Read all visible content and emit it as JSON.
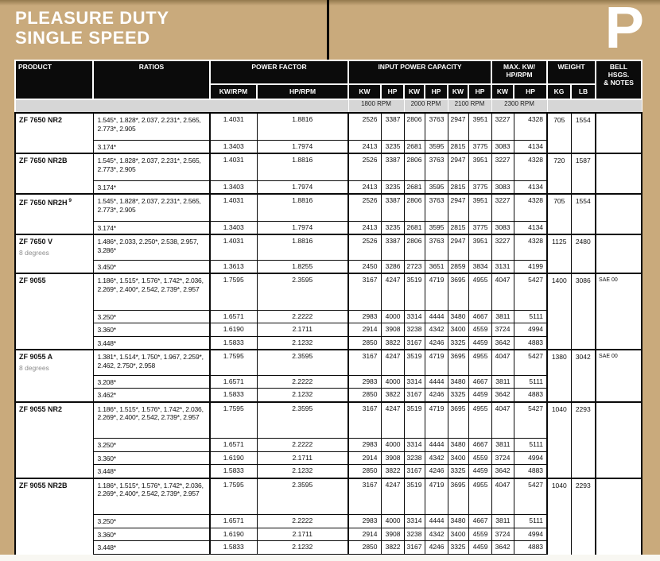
{
  "page": {
    "title": "PLEASURE DUTY\nSINGLE SPEED",
    "section_letter": "P"
  },
  "colors": {
    "accent_tan": "#c9aa7c",
    "header_black": "#0b0b0b",
    "rpm_band_gray": "#d6d6d6",
    "note_gray": "#8d8d8d"
  },
  "table": {
    "header": {
      "product": "PRODUCT",
      "ratios": "RATIOS",
      "power_factor": "POWER FACTOR",
      "kw_rpm": "KW/RPM",
      "hp_rpm": "HP/RPM",
      "input_power_capacity": "INPUT POWER CAPACITY",
      "max_kw_hp_rpm": "MAX. KW/\nHP/RPM",
      "weight": "WEIGHT",
      "bell_hsgs_notes": "BELL HSGS.\n& NOTES",
      "kw": "KW",
      "hp": "HP",
      "kg": "KG",
      "lb": "LB",
      "rpm_labels": [
        "1800 RPM",
        "2000 RPM",
        "2100 RPM",
        "2300 RPM"
      ]
    },
    "groups": [
      {
        "product": "ZF 7650 NR2",
        "sup": "",
        "note": "",
        "weight_kg": "705",
        "weight_lb": "1554",
        "bell": "",
        "rows": [
          {
            "ratios": "1.545*, 1.828*, 2.037, 2.231*, 2.565, 2.773*, 2.905",
            "kw_rpm": "1.4031",
            "hp_rpm": "1.8816",
            "values": [
              "2526",
              "3387",
              "2806",
              "3763",
              "2947",
              "3951",
              "3227",
              "4328"
            ]
          },
          {
            "ratios": "3.174*",
            "kw_rpm": "1.3403",
            "hp_rpm": "1.7974",
            "values": [
              "2413",
              "3235",
              "2681",
              "3595",
              "2815",
              "3775",
              "3083",
              "4134"
            ]
          }
        ]
      },
      {
        "product": "ZF 7650 NR2B",
        "sup": "",
        "note": "",
        "weight_kg": "720",
        "weight_lb": "1587",
        "bell": "",
        "rows": [
          {
            "ratios": "1.545*, 1.828*, 2.037, 2.231*, 2.565, 2.773*, 2.905",
            "kw_rpm": "1.4031",
            "hp_rpm": "1.8816",
            "values": [
              "2526",
              "3387",
              "2806",
              "3763",
              "2947",
              "3951",
              "3227",
              "4328"
            ]
          },
          {
            "ratios": "3.174*",
            "kw_rpm": "1.3403",
            "hp_rpm": "1.7974",
            "values": [
              "2413",
              "3235",
              "2681",
              "3595",
              "2815",
              "3775",
              "3083",
              "4134"
            ]
          }
        ]
      },
      {
        "product": "ZF 7650 NR2H",
        "sup": "9",
        "note": "",
        "weight_kg": "705",
        "weight_lb": "1554",
        "bell": "",
        "rows": [
          {
            "ratios": "1.545*, 1.828*, 2.037, 2.231*, 2.565, 2.773*, 2.905",
            "kw_rpm": "1.4031",
            "hp_rpm": "1.8816",
            "values": [
              "2526",
              "3387",
              "2806",
              "3763",
              "2947",
              "3951",
              "3227",
              "4328"
            ]
          },
          {
            "ratios": "3.174*",
            "kw_rpm": "1.3403",
            "hp_rpm": "1.7974",
            "values": [
              "2413",
              "3235",
              "2681",
              "3595",
              "2815",
              "3775",
              "3083",
              "4134"
            ]
          }
        ]
      },
      {
        "product": "ZF 7650 V",
        "sup": "",
        "note": "8 degrees",
        "weight_kg": "1125",
        "weight_lb": "2480",
        "bell": "",
        "rows": [
          {
            "ratios": "1.486*, 2.033, 2.250*, 2.538, 2.957, 3.286*",
            "kw_rpm": "1.4031",
            "hp_rpm": "1.8816",
            "values": [
              "2526",
              "3387",
              "2806",
              "3763",
              "2947",
              "3951",
              "3227",
              "4328"
            ]
          },
          {
            "ratios": "3.450*",
            "kw_rpm": "1.3613",
            "hp_rpm": "1.8255",
            "values": [
              "2450",
              "3286",
              "2723",
              "3651",
              "2859",
              "3834",
              "3131",
              "4199"
            ]
          }
        ]
      },
      {
        "product": "ZF 9055",
        "sup": "",
        "note": "",
        "weight_kg": "1400",
        "weight_lb": "3086",
        "bell": "SAE 00",
        "rows": [
          {
            "ratios": "1.186*, 1.515*, 1.576*, 1.742*, 2.036, 2.269*, 2.400*, 2.542, 2.739*, 2.957",
            "kw_rpm": "1.7595",
            "hp_rpm": "2.3595",
            "values": [
              "3167",
              "4247",
              "3519",
              "4719",
              "3695",
              "4955",
              "4047",
              "5427"
            ]
          },
          {
            "ratios": "3.250*",
            "kw_rpm": "1.6571",
            "hp_rpm": "2.2222",
            "values": [
              "2983",
              "4000",
              "3314",
              "4444",
              "3480",
              "4667",
              "3811",
              "5111"
            ]
          },
          {
            "ratios": "3.360*",
            "kw_rpm": "1.6190",
            "hp_rpm": "2.1711",
            "values": [
              "2914",
              "3908",
              "3238",
              "4342",
              "3400",
              "4559",
              "3724",
              "4994"
            ]
          },
          {
            "ratios": "3.448*",
            "kw_rpm": "1.5833",
            "hp_rpm": "2.1232",
            "values": [
              "2850",
              "3822",
              "3167",
              "4246",
              "3325",
              "4459",
              "3642",
              "4883"
            ]
          }
        ]
      },
      {
        "product": "ZF 9055 A",
        "sup": "",
        "note": "8 degrees",
        "weight_kg": "1380",
        "weight_lb": "3042",
        "bell": "SAE 00",
        "rows": [
          {
            "ratios": "1.381*, 1.514*, 1.750*, 1.967, 2.259*, 2.462, 2.750*, 2.958",
            "kw_rpm": "1.7595",
            "hp_rpm": "2.3595",
            "values": [
              "3167",
              "4247",
              "3519",
              "4719",
              "3695",
              "4955",
              "4047",
              "5427"
            ]
          },
          {
            "ratios": "3.208*",
            "kw_rpm": "1.6571",
            "hp_rpm": "2.2222",
            "values": [
              "2983",
              "4000",
              "3314",
              "4444",
              "3480",
              "4667",
              "3811",
              "5111"
            ]
          },
          {
            "ratios": "3.462*",
            "kw_rpm": "1.5833",
            "hp_rpm": "2.1232",
            "values": [
              "2850",
              "3822",
              "3167",
              "4246",
              "3325",
              "4459",
              "3642",
              "4883"
            ]
          }
        ]
      },
      {
        "product": "ZF 9055 NR2",
        "sup": "",
        "note": "",
        "weight_kg": "1040",
        "weight_lb": "2293",
        "bell": "",
        "rows": [
          {
            "ratios": "1.186*, 1.515*, 1.576*, 1.742*, 2.036, 2.269*, 2.400*, 2.542, 2.739*, 2.957",
            "kw_rpm": "1.7595",
            "hp_rpm": "2.3595",
            "values": [
              "3167",
              "4247",
              "3519",
              "4719",
              "3695",
              "4955",
              "4047",
              "5427"
            ]
          },
          {
            "ratios": "3.250*",
            "kw_rpm": "1.6571",
            "hp_rpm": "2.2222",
            "values": [
              "2983",
              "4000",
              "3314",
              "4444",
              "3480",
              "4667",
              "3811",
              "5111"
            ]
          },
          {
            "ratios": "3.360*",
            "kw_rpm": "1.6190",
            "hp_rpm": "2.1711",
            "values": [
              "2914",
              "3908",
              "3238",
              "4342",
              "3400",
              "4559",
              "3724",
              "4994"
            ]
          },
          {
            "ratios": "3.448*",
            "kw_rpm": "1.5833",
            "hp_rpm": "2.1232",
            "values": [
              "2850",
              "3822",
              "3167",
              "4246",
              "3325",
              "4459",
              "3642",
              "4883"
            ]
          }
        ]
      },
      {
        "product": "ZF 9055 NR2B",
        "sup": "",
        "note": "",
        "weight_kg": "1040",
        "weight_lb": "2293",
        "bell": "",
        "rows": [
          {
            "ratios": "1.186*, 1.515*, 1.576*, 1.742*, 2.036, 2.269*, 2.400*, 2.542, 2.739*, 2.957",
            "kw_rpm": "1.7595",
            "hp_rpm": "2.3595",
            "values": [
              "3167",
              "4247",
              "3519",
              "4719",
              "3695",
              "4955",
              "4047",
              "5427"
            ]
          },
          {
            "ratios": "3.250*",
            "kw_rpm": "1.6571",
            "hp_rpm": "2.2222",
            "values": [
              "2983",
              "4000",
              "3314",
              "4444",
              "3480",
              "4667",
              "3811",
              "5111"
            ]
          },
          {
            "ratios": "3.360*",
            "kw_rpm": "1.6190",
            "hp_rpm": "2.1711",
            "values": [
              "2914",
              "3908",
              "3238",
              "4342",
              "3400",
              "4559",
              "3724",
              "4994"
            ]
          },
          {
            "ratios": "3.448*",
            "kw_rpm": "1.5833",
            "hp_rpm": "2.1232",
            "values": [
              "2850",
              "3822",
              "3167",
              "4246",
              "3325",
              "4459",
              "3642",
              "4883"
            ]
          }
        ]
      }
    ]
  }
}
